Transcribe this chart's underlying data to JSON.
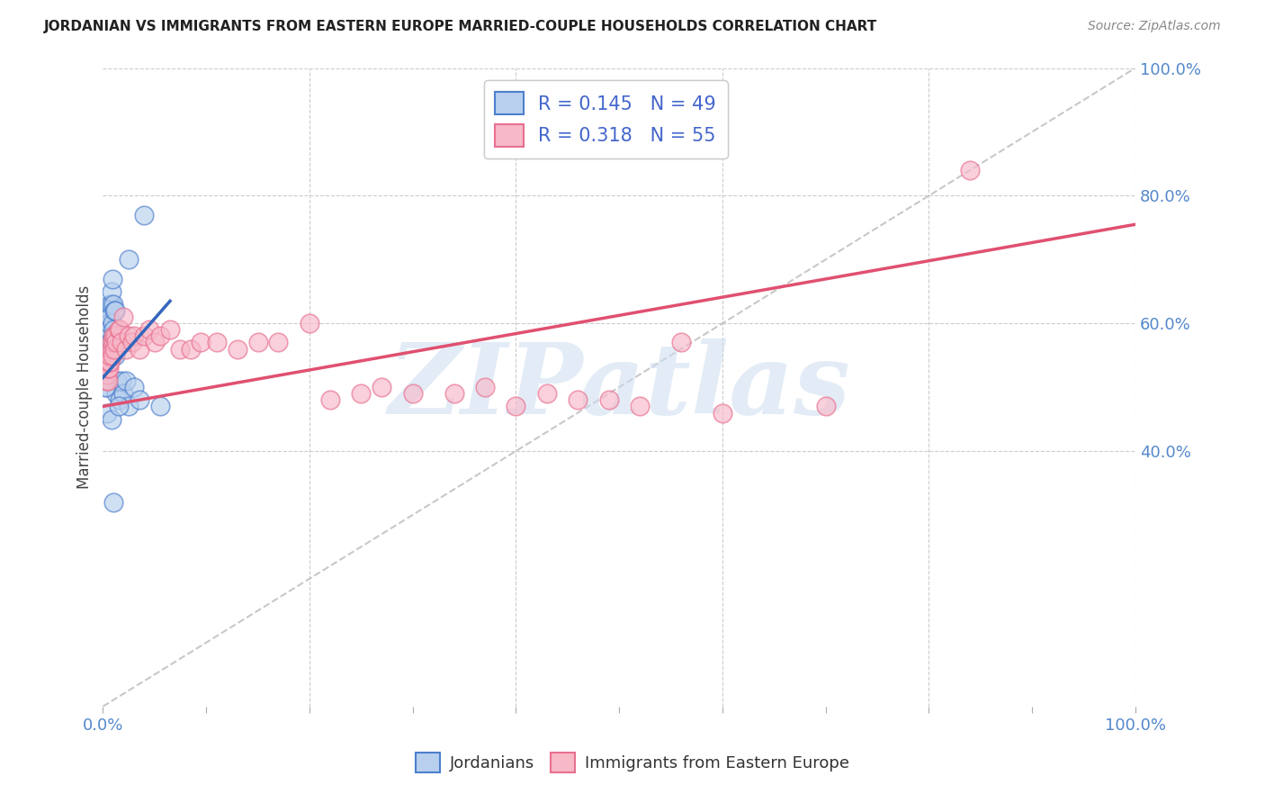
{
  "title": "JORDANIAN VS IMMIGRANTS FROM EASTERN EUROPE MARRIED-COUPLE HOUSEHOLDS CORRELATION CHART",
  "source": "Source: ZipAtlas.com",
  "ylabel": "Married-couple Households",
  "xlim": [
    0,
    1.0
  ],
  "ylim": [
    0,
    1.0
  ],
  "right_ytick_labels": [
    "40.0%",
    "60.0%",
    "80.0%",
    "100.0%"
  ],
  "right_ytick_positions": [
    0.4,
    0.6,
    0.8,
    1.0
  ],
  "blue_R": "0.145",
  "blue_N": "49",
  "pink_R": "0.318",
  "pink_N": "55",
  "blue_face_color": "#b8d0ee",
  "pink_face_color": "#f7b8c8",
  "blue_edge_color": "#4d7fcc",
  "pink_edge_color": "#e87090",
  "blue_line_color": "#3366bb",
  "pink_line_color": "#e05070",
  "diag_line_color": "#bbbbbb",
  "legend_text_color": "#4466cc",
  "watermark_text": "ZIPatlas",
  "watermark_color": "#ccddf0",
  "background_color": "#ffffff",
  "grid_color": "#cccccc",
  "title_color": "#222222",
  "source_color": "#888888",
  "ylabel_color": "#444444",
  "tick_color": "#5588cc",
  "blue_x": [
    0.002,
    0.003,
    0.003,
    0.004,
    0.004,
    0.004,
    0.004,
    0.005,
    0.005,
    0.005,
    0.005,
    0.005,
    0.005,
    0.006,
    0.006,
    0.006,
    0.006,
    0.007,
    0.007,
    0.007,
    0.007,
    0.008,
    0.008,
    0.008,
    0.009,
    0.009,
    0.01,
    0.01,
    0.01,
    0.011,
    0.012,
    0.012,
    0.013,
    0.014,
    0.016,
    0.018,
    0.02,
    0.022,
    0.025,
    0.03,
    0.035,
    0.002,
    0.004,
    0.008,
    0.015,
    0.025,
    0.04,
    0.055,
    0.01
  ],
  "blue_y": [
    0.54,
    0.56,
    0.58,
    0.5,
    0.57,
    0.59,
    0.53,
    0.52,
    0.6,
    0.55,
    0.61,
    0.54,
    0.58,
    0.62,
    0.56,
    0.59,
    0.6,
    0.63,
    0.57,
    0.61,
    0.56,
    0.63,
    0.57,
    0.65,
    0.6,
    0.67,
    0.59,
    0.63,
    0.58,
    0.62,
    0.62,
    0.55,
    0.49,
    0.51,
    0.48,
    0.51,
    0.49,
    0.51,
    0.47,
    0.5,
    0.48,
    0.5,
    0.46,
    0.45,
    0.47,
    0.7,
    0.77,
    0.47,
    0.32
  ],
  "pink_x": [
    0.003,
    0.004,
    0.004,
    0.005,
    0.005,
    0.005,
    0.006,
    0.006,
    0.007,
    0.007,
    0.008,
    0.008,
    0.009,
    0.01,
    0.01,
    0.011,
    0.012,
    0.013,
    0.015,
    0.016,
    0.018,
    0.02,
    0.022,
    0.025,
    0.028,
    0.03,
    0.035,
    0.04,
    0.045,
    0.05,
    0.055,
    0.065,
    0.075,
    0.085,
    0.095,
    0.11,
    0.13,
    0.15,
    0.17,
    0.2,
    0.22,
    0.25,
    0.27,
    0.3,
    0.34,
    0.37,
    0.4,
    0.43,
    0.46,
    0.49,
    0.52,
    0.56,
    0.6,
    0.7,
    0.84
  ],
  "pink_y": [
    0.51,
    0.53,
    0.52,
    0.51,
    0.53,
    0.54,
    0.53,
    0.54,
    0.54,
    0.55,
    0.56,
    0.57,
    0.55,
    0.57,
    0.58,
    0.56,
    0.58,
    0.57,
    0.59,
    0.59,
    0.57,
    0.61,
    0.56,
    0.58,
    0.57,
    0.58,
    0.56,
    0.58,
    0.59,
    0.57,
    0.58,
    0.59,
    0.56,
    0.56,
    0.57,
    0.57,
    0.56,
    0.57,
    0.57,
    0.6,
    0.48,
    0.49,
    0.5,
    0.49,
    0.49,
    0.5,
    0.47,
    0.49,
    0.48,
    0.48,
    0.47,
    0.57,
    0.46,
    0.47,
    0.84
  ],
  "blue_line_x0": 0.0,
  "blue_line_x1": 0.065,
  "blue_line_y0": 0.515,
  "blue_line_y1": 0.635,
  "pink_line_x0": 0.0,
  "pink_line_x1": 1.0,
  "pink_line_y0": 0.47,
  "pink_line_y1": 0.755
}
